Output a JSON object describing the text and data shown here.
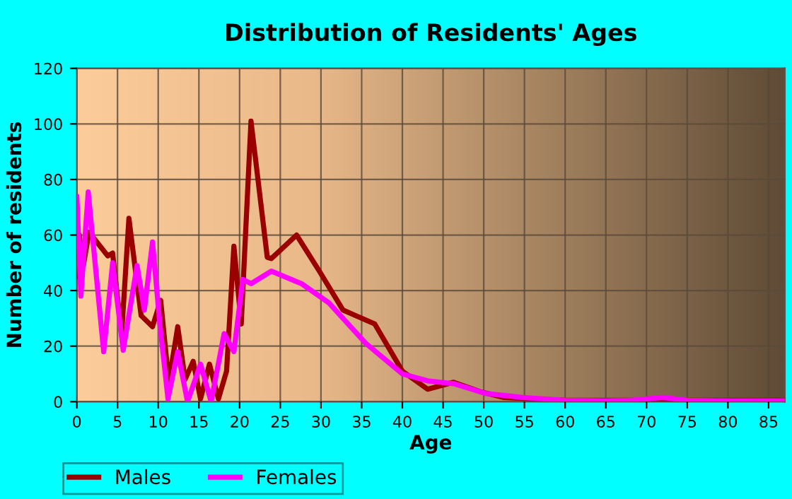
{
  "chart_data": {
    "type": "line",
    "title": "Distribution of Residents' Ages",
    "xlabel": "Age",
    "ylabel": "Number of residents",
    "xlim": [
      0,
      87
    ],
    "ylim": [
      0,
      120
    ],
    "xticks": [
      0,
      5,
      10,
      15,
      20,
      25,
      30,
      35,
      40,
      45,
      50,
      55,
      60,
      65,
      70,
      75,
      80,
      85
    ],
    "yticks": [
      0,
      20,
      40,
      60,
      80,
      100,
      120
    ],
    "grid": true,
    "legend": "bottom",
    "marker": "none",
    "line_style": "solid",
    "series": [
      {
        "name": "Males",
        "color": "#9b0000",
        "x": [
          0,
          0.3,
          0.8,
          1.5,
          3.8,
          4.4,
          5.5,
          6.4,
          7.9,
          9.3,
          10.3,
          11.3,
          12.4,
          13.3,
          14.3,
          15.2,
          16.3,
          17.4,
          18.4,
          19.3,
          20.2,
          21.4,
          23.4,
          23.9,
          27,
          29.8,
          32.7,
          36.6,
          40,
          43.1,
          46.3,
          49.7,
          52.5,
          55.9,
          60,
          70,
          80,
          87
        ],
        "values": [
          45,
          60,
          49,
          61,
          52.5,
          53.5,
          24,
          66,
          31,
          27,
          36.5,
          7,
          27,
          8,
          14.5,
          1,
          13.5,
          1,
          11,
          56,
          28,
          101,
          52,
          51.5,
          60,
          47,
          33,
          28,
          11,
          4.5,
          7,
          3.5,
          1.5,
          1,
          0.5,
          0.5,
          0.5,
          0.5
        ]
      },
      {
        "name": "Females",
        "color": "#ff00ff",
        "x": [
          0,
          0.5,
          1.4,
          3.3,
          4.4,
          5.7,
          7.4,
          8.3,
          9.3,
          10.2,
          11.2,
          12.4,
          13.6,
          15.2,
          16.5,
          18.1,
          19.3,
          20.4,
          21.4,
          23.9,
          27.6,
          31,
          35.5,
          40,
          43.1,
          46.3,
          50.2,
          54.8,
          60,
          65,
          68,
          72,
          75,
          80,
          87
        ],
        "values": [
          74,
          38,
          75.5,
          18,
          50,
          18.5,
          49,
          33,
          57.5,
          28,
          1,
          18,
          0,
          13.5,
          0,
          24.5,
          18,
          44,
          42.5,
          47,
          42.5,
          35.5,
          21,
          10,
          7.5,
          6.5,
          3,
          1.5,
          0.5,
          0.3,
          0.5,
          1.5,
          0.5,
          0.3,
          0.3
        ]
      }
    ]
  }
}
